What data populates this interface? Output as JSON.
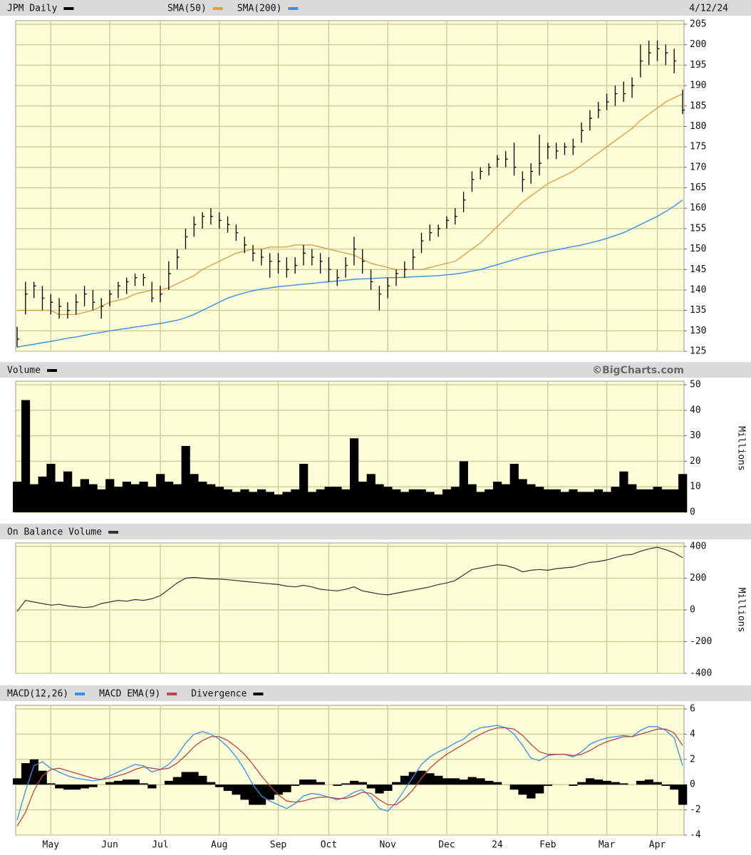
{
  "chart_data": [
    {
      "type": "ohlc",
      "title": "JPM Daily",
      "date": "4/12/24",
      "color": "#000000",
      "ylim": [
        125,
        205
      ],
      "yticks": [
        125,
        130,
        135,
        140,
        145,
        150,
        155,
        160,
        165,
        170,
        175,
        180,
        185,
        190,
        195,
        200,
        205
      ],
      "grid": true,
      "high": [
        131,
        142,
        142,
        141,
        139,
        138,
        137,
        139,
        141,
        140,
        138,
        140,
        142,
        143,
        144,
        144,
        142,
        141,
        147,
        150,
        155,
        158,
        159,
        160,
        159,
        158,
        156,
        153,
        151,
        150,
        149,
        149,
        148,
        148,
        151,
        150,
        149,
        148,
        145,
        148,
        153,
        150,
        145,
        141,
        143,
        145,
        147,
        150,
        154,
        156,
        156,
        158,
        160,
        164,
        169,
        170,
        171,
        173,
        174,
        176,
        169,
        171,
        178,
        176,
        176,
        176,
        177,
        181,
        184,
        186,
        188,
        190,
        191,
        192,
        200,
        201,
        201,
        200,
        199,
        189
      ],
      "low": [
        126,
        134,
        138,
        135,
        134,
        133,
        133,
        134,
        136,
        135,
        133,
        136,
        138,
        139,
        141,
        141,
        137,
        137,
        140,
        145,
        150,
        153,
        155,
        156,
        155,
        154,
        152,
        149,
        147,
        146,
        143,
        144,
        143,
        144,
        146,
        146,
        144,
        142,
        141,
        143,
        146,
        144,
        140,
        135,
        138,
        141,
        143,
        145,
        149,
        152,
        153,
        155,
        156,
        159,
        164,
        167,
        168,
        170,
        170,
        168,
        164,
        166,
        168,
        172,
        172,
        173,
        173,
        176,
        179,
        182,
        184,
        185,
        186,
        187,
        192,
        195,
        196,
        195,
        193,
        183
      ],
      "close": [
        128,
        139,
        141,
        138,
        137,
        136,
        135,
        137,
        139,
        137,
        136,
        139,
        141,
        142,
        143,
        143,
        138,
        139,
        144,
        148,
        153,
        156,
        158,
        158,
        157,
        156,
        154,
        151,
        149,
        148,
        147,
        147,
        145,
        146,
        149,
        148,
        147,
        145,
        143,
        146,
        150,
        147,
        142,
        139,
        141,
        144,
        145,
        148,
        152,
        154,
        155,
        157,
        158,
        162,
        167,
        169,
        170,
        172,
        172,
        170,
        167,
        169,
        171,
        175,
        174,
        175,
        175,
        179,
        182,
        184,
        186,
        188,
        188,
        190,
        196,
        198,
        199,
        198,
        196,
        184
      ],
      "series": [
        {
          "name": "SMA(50)",
          "color": "#d9a24a",
          "values": [
            135,
            135,
            135,
            135,
            135,
            134,
            134,
            134,
            134.5,
            135,
            136,
            137,
            137.5,
            138,
            139,
            139.5,
            140,
            140,
            140.5,
            141.5,
            142.5,
            143.5,
            145,
            146,
            147,
            148,
            149,
            149.5,
            150,
            150,
            150.5,
            150.5,
            150.5,
            151,
            151,
            151,
            150.5,
            150,
            149.5,
            149,
            148.5,
            147.5,
            146.5,
            146,
            145.5,
            145,
            145,
            145,
            145,
            145.5,
            146,
            146.5,
            147,
            148.5,
            150,
            151.5,
            153.5,
            155.5,
            157.5,
            159.5,
            161.5,
            163,
            164.5,
            166,
            167,
            168,
            169,
            170.5,
            172,
            173.5,
            175,
            176.5,
            178,
            179.5,
            181.5,
            183,
            184.5,
            186,
            187,
            188
          ]
        },
        {
          "name": "SMA(200)",
          "color": "#3a8ee6",
          "values": [
            126,
            126.4,
            126.7,
            127.1,
            127.4,
            127.8,
            128.2,
            128.5,
            128.9,
            129.3,
            129.6,
            130,
            130.3,
            130.6,
            130.9,
            131.2,
            131.5,
            131.8,
            132.2,
            132.6,
            133.2,
            134,
            135,
            136,
            137,
            138,
            138.7,
            139.3,
            139.8,
            140.2,
            140.5,
            140.8,
            141,
            141.2,
            141.4,
            141.6,
            141.8,
            142,
            142.2,
            142.4,
            142.6,
            142.7,
            142.8,
            142.9,
            143,
            143,
            143.1,
            143.2,
            143.3,
            143.4,
            143.5,
            143.7,
            143.9,
            144.2,
            144.6,
            145,
            145.6,
            146.2,
            146.8,
            147.4,
            148,
            148.5,
            149,
            149.4,
            149.8,
            150.2,
            150.6,
            151,
            151.5,
            152,
            152.6,
            153.3,
            154,
            155,
            156,
            157,
            158,
            159.2,
            160.5,
            162
          ]
        }
      ]
    },
    {
      "type": "bar",
      "title": "Volume",
      "credit": "©BigCharts.com",
      "y_label": "Millions",
      "color": "#000000",
      "ylim": [
        0,
        50
      ],
      "yticks": [
        0,
        10,
        20,
        30,
        40,
        50
      ],
      "grid": true,
      "values": [
        12,
        44,
        11,
        14,
        19,
        12,
        16,
        10,
        13,
        11,
        9,
        13,
        10,
        12,
        11,
        12,
        10,
        15,
        12,
        11,
        26,
        15,
        12,
        11,
        10,
        9,
        8,
        9,
        8,
        9,
        8,
        7,
        8,
        9,
        19,
        8,
        9,
        10,
        10,
        9,
        29,
        12,
        15,
        11,
        10,
        9,
        8,
        9,
        9,
        8,
        7,
        9,
        10,
        20,
        11,
        8,
        9,
        12,
        11,
        19,
        13,
        11,
        10,
        9,
        9,
        8,
        9,
        8,
        8,
        9,
        8,
        10,
        16,
        11,
        9,
        9,
        10,
        9,
        9,
        15
      ]
    },
    {
      "type": "line",
      "title": "On Balance Volume",
      "y_label": "Millions",
      "color": "#333333",
      "ylim": [
        -400,
        400
      ],
      "yticks": [
        -400,
        -200,
        0,
        200,
        400
      ],
      "grid": true,
      "values": [
        -10,
        60,
        50,
        40,
        30,
        35,
        25,
        20,
        15,
        20,
        40,
        50,
        60,
        55,
        65,
        60,
        70,
        90,
        130,
        170,
        200,
        205,
        200,
        195,
        195,
        190,
        185,
        180,
        175,
        170,
        165,
        160,
        150,
        145,
        155,
        145,
        130,
        125,
        120,
        130,
        145,
        120,
        110,
        100,
        95,
        105,
        115,
        125,
        135,
        145,
        160,
        170,
        185,
        220,
        255,
        265,
        275,
        285,
        280,
        265,
        240,
        250,
        255,
        250,
        260,
        265,
        270,
        285,
        300,
        305,
        315,
        330,
        345,
        350,
        370,
        385,
        395,
        380,
        360,
        330
      ]
    },
    {
      "type": "macd",
      "ylim": [
        -4,
        6
      ],
      "yticks": [
        -4,
        -2,
        0,
        2,
        4,
        6
      ],
      "grid": true,
      "categories": [
        null,
        null,
        null,
        null,
        "May",
        null,
        null,
        null,
        null,
        null,
        null,
        "Jun",
        null,
        null,
        null,
        null,
        null,
        "Jul",
        null,
        null,
        null,
        null,
        null,
        null,
        "Aug",
        null,
        null,
        null,
        null,
        null,
        null,
        "Sep",
        null,
        null,
        null,
        null,
        null,
        "Oct",
        null,
        null,
        null,
        null,
        null,
        null,
        "Nov",
        null,
        null,
        null,
        null,
        null,
        null,
        "Dec",
        null,
        null,
        null,
        null,
        null,
        "24",
        null,
        null,
        null,
        null,
        null,
        "Feb",
        null,
        null,
        null,
        null,
        null,
        null,
        "Mar",
        null,
        null,
        null,
        null,
        null,
        "Apr",
        null,
        null,
        null
      ],
      "series": [
        {
          "name": "MACD(12,26)",
          "color": "#3a8ee6",
          "type": "line",
          "values": [
            -2.8,
            -0.5,
            1.5,
            1.8,
            1.3,
            1.0,
            0.7,
            0.5,
            0.4,
            0.3,
            0.4,
            0.7,
            1.0,
            1.3,
            1.6,
            1.5,
            1.0,
            1.2,
            1.6,
            2.3,
            3.3,
            4.0,
            4.2,
            4.0,
            3.6,
            3.0,
            2.2,
            1.2,
            0,
            -0.9,
            -1.3,
            -1.6,
            -1.9,
            -1.5,
            -0.9,
            -0.7,
            -0.8,
            -1.0,
            -1.2,
            -1.0,
            -0.6,
            -0.4,
            -1.0,
            -1.9,
            -2.1,
            -1.4,
            -0.4,
            0.6,
            1.6,
            2.2,
            2.6,
            2.9,
            3.3,
            3.6,
            4.2,
            4.5,
            4.6,
            4.7,
            4.5,
            4.0,
            3.1,
            2.1,
            1.9,
            2.3,
            2.4,
            2.4,
            2.2,
            2.6,
            3.2,
            3.5,
            3.7,
            3.8,
            3.9,
            3.8,
            4.3,
            4.6,
            4.6,
            4.3,
            3.7,
            1.5
          ]
        },
        {
          "name": "MACD EMA(9)",
          "color": "#b5484a",
          "type": "line",
          "values": [
            -3.3,
            -2.2,
            -0.5,
            0.7,
            1.2,
            1.3,
            1.1,
            0.9,
            0.7,
            0.5,
            0.4,
            0.5,
            0.7,
            0.9,
            1.2,
            1.4,
            1.3,
            1.2,
            1.3,
            1.7,
            2.3,
            3.0,
            3.5,
            3.8,
            3.8,
            3.5,
            3.0,
            2.4,
            1.6,
            0.7,
            -0.1,
            -0.8,
            -1.3,
            -1.4,
            -1.3,
            -1.1,
            -1.0,
            -1.0,
            -1.1,
            -1.1,
            -0.9,
            -0.6,
            -0.7,
            -1.2,
            -1.6,
            -1.6,
            -1.1,
            -0.4,
            0.5,
            1.3,
            1.9,
            2.4,
            2.8,
            3.2,
            3.6,
            4.0,
            4.3,
            4.5,
            4.5,
            4.4,
            3.9,
            3.2,
            2.6,
            2.4,
            2.4,
            2.4,
            2.3,
            2.4,
            2.7,
            3.1,
            3.4,
            3.6,
            3.8,
            3.8,
            4.0,
            4.2,
            4.4,
            4.4,
            4.1,
            3.1
          ]
        },
        {
          "name": "Divergence",
          "color": "#000000",
          "type": "bar",
          "values": [
            0.5,
            1.7,
            2.0,
            1.1,
            0.1,
            -0.3,
            -0.4,
            -0.4,
            -0.3,
            -0.2,
            0,
            0.2,
            0.3,
            0.4,
            0.4,
            0.1,
            -0.3,
            0,
            0.3,
            0.6,
            1.0,
            1.0,
            0.7,
            0.2,
            -0.2,
            -0.5,
            -0.8,
            -1.2,
            -1.6,
            -1.6,
            -1.2,
            -0.8,
            -0.6,
            -0.1,
            0.4,
            0.4,
            0.2,
            0,
            -0.1,
            0.1,
            0.3,
            0.2,
            -0.3,
            -0.7,
            -0.5,
            0.2,
            0.7,
            1.0,
            1.1,
            0.9,
            0.7,
            0.5,
            0.5,
            0.4,
            0.6,
            0.5,
            0.3,
            0.2,
            0,
            -0.4,
            -0.8,
            -1.1,
            -0.7,
            -0.1,
            0,
            0,
            -0.1,
            0.2,
            0.5,
            0.4,
            0.3,
            0.2,
            0.1,
            0,
            0.3,
            0.4,
            0.2,
            -0.1,
            -0.4,
            -1.6
          ]
        }
      ]
    }
  ]
}
